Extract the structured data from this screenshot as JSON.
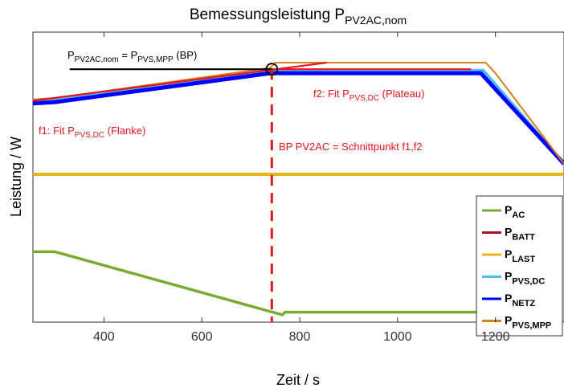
{
  "chart_data": {
    "type": "line",
    "title": {
      "main": "Bemessungsleistung P",
      "sub": "PV2AC,nom"
    },
    "xlabel": "Zeit / s",
    "ylabel": "Leistung / W",
    "xlim": [
      255,
      1340
    ],
    "ylim": [
      0,
      100
    ],
    "x_ticks": [
      400,
      600,
      800,
      1000,
      1200
    ],
    "grid": false,
    "legend_position": "bottom-right",
    "series": [
      {
        "name": "AC",
        "color": "#77ac30",
        "width": 3.5,
        "x": [
          255,
          300,
          735,
          765,
          770,
          1185
        ],
        "y": [
          28,
          28,
          5.5,
          4,
          5,
          5
        ]
      },
      {
        "name": "BATT",
        "color": "#a2142f",
        "width": 3,
        "x": [
          255,
          1340
        ],
        "y": [
          57.5,
          57.5
        ]
      },
      {
        "name": "LAST",
        "color": "#edb120",
        "width": 4,
        "x": [
          255,
          1340
        ],
        "y": [
          57.5,
          57.5
        ]
      },
      {
        "name": "PVS,DC",
        "color": "#4dbeee",
        "width": 4,
        "x": [
          255,
          300,
          740,
          1175,
          1340
        ],
        "y": [
          85.5,
          86,
          97,
          97,
          61.5
        ]
      },
      {
        "name": "NETZ",
        "color": "#0000ff",
        "width": 5,
        "x": [
          255,
          300,
          740,
          1170,
          1340
        ],
        "y": [
          84.5,
          85,
          96,
          96,
          61.5
        ]
      },
      {
        "name": "PVS,MPP",
        "color": "#d97f22",
        "width": 2,
        "x": [
          255,
          300,
          740,
          750,
          1180,
          1200,
          1340
        ],
        "y": [
          86,
          86.5,
          98,
          100,
          100,
          96,
          61.5
        ]
      }
    ],
    "fits": [
      {
        "name": "f1",
        "color": "#e8141b",
        "x": [
          255,
          855
        ],
        "y": [
          85.5,
          100
        ]
      },
      {
        "name": "f2",
        "color": "#e8141b",
        "x": [
          745,
          1150
        ],
        "y": [
          97.5,
          97.5
        ]
      },
      {
        "name": "BP",
        "color": "#000000",
        "x": [
          330,
          745
        ],
        "y": [
          97.5,
          97.5
        ]
      }
    ],
    "bp_point": {
      "x": 743,
      "y": 97.5
    },
    "annotations": {
      "bp_definition": {
        "a": "P",
        "a_sub": "PV2AC,nom",
        "b": " = P",
        "b_sub": "PVS,MPP",
        "c": " (BP)"
      },
      "f2_label": {
        "a": "f2: Fit P",
        "sub": "PVS,DC",
        "b": " (Plateau)"
      },
      "f1_label": {
        "a": "f1: Fit P",
        "sub": "PVS,DC",
        "b": " (Flanke)"
      },
      "bp_label": "BP PV2AC = Schnittpunkt  f1,f2"
    },
    "legend": [
      {
        "main": "P",
        "sub": "AC",
        "color": "#77ac30"
      },
      {
        "main": "P",
        "sub": "BATT",
        "color": "#a2142f"
      },
      {
        "main": "P",
        "sub": "LAST",
        "color": "#edb120"
      },
      {
        "main": "P",
        "sub": "PVS,DC",
        "color": "#4dbeee"
      },
      {
        "main": "P",
        "sub": "NETZ",
        "color": "#0000ff"
      },
      {
        "main": "P",
        "sub": "PVS,MPP",
        "color": "#d97f22"
      }
    ]
  }
}
